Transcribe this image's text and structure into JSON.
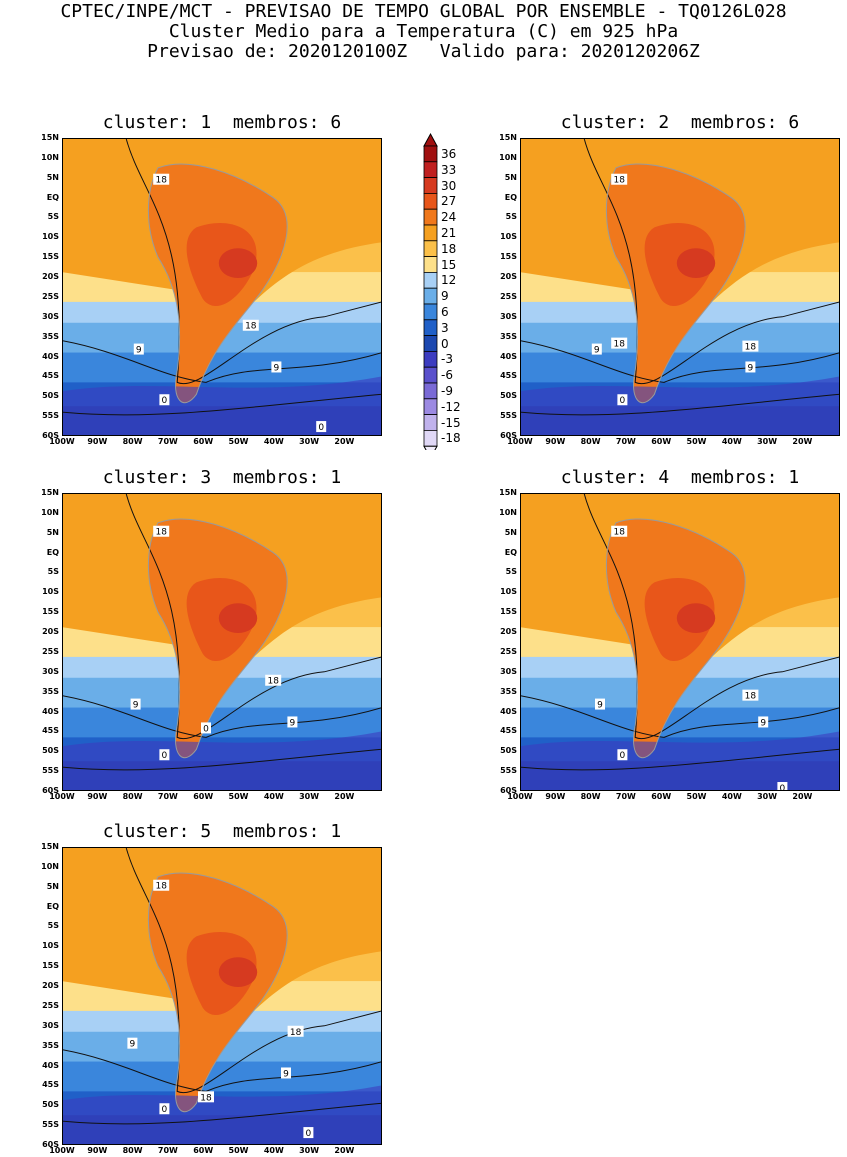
{
  "header": {
    "line1": "CPTEC/INPE/MCT - PREVISAO DE TEMPO GLOBAL POR ENSEMBLE - TQ0126L028",
    "line2": "Cluster Medio para a Temperatura (C) em 925 hPa",
    "line3": "Previsao de: 2020120100Z   Valido para: 2020120206Z"
  },
  "panels": [
    {
      "title": "cluster: 1  membros: 6",
      "labels": [
        "18",
        "18",
        "9",
        "9",
        "0",
        "0"
      ]
    },
    {
      "title": "cluster: 2  membros: 6",
      "labels": [
        "18",
        "18",
        "18",
        "9",
        "9",
        "0"
      ]
    },
    {
      "title": "cluster: 3  membros: 1",
      "labels": [
        "18",
        "18",
        "9",
        "9",
        "0",
        "0"
      ]
    },
    {
      "title": "cluster: 4  membros: 1",
      "labels": [
        "18",
        "18",
        "9",
        "9",
        "0",
        "0"
      ]
    },
    {
      "title": "cluster: 5  membros: 1",
      "labels": [
        "18",
        "18",
        "18",
        "9",
        "9",
        "0",
        "0"
      ]
    }
  ],
  "axes": {
    "lat_ticks": [
      "15N",
      "10N",
      "5N",
      "EQ",
      "5S",
      "10S",
      "15S",
      "20S",
      "25S",
      "30S",
      "35S",
      "40S",
      "45S",
      "50S",
      "55S",
      "60S"
    ],
    "lon_ticks": [
      "100W",
      "90W",
      "80W",
      "70W",
      "60W",
      "50W",
      "40W",
      "30W",
      "20W"
    ]
  },
  "colorbar": {
    "levels": [
      "36",
      "33",
      "30",
      "27",
      "24",
      "21",
      "18",
      "15",
      "12",
      "9",
      "6",
      "3",
      "0",
      "-3",
      "-6",
      "-9",
      "-12",
      "-15",
      "-18"
    ],
    "colors": [
      "#a01010",
      "#c02020",
      "#d63a20",
      "#e8561a",
      "#f0781c",
      "#f5a020",
      "#fbc04a",
      "#fde08a",
      "#a8d0f5",
      "#6aaee8",
      "#3a86dc",
      "#2060c8",
      "#1c48b0",
      "#3c3cc0",
      "#5a50cc",
      "#7a6ad6",
      "#9c8ae2",
      "#c0b2ec",
      "#e0d8f6"
    ]
  }
}
